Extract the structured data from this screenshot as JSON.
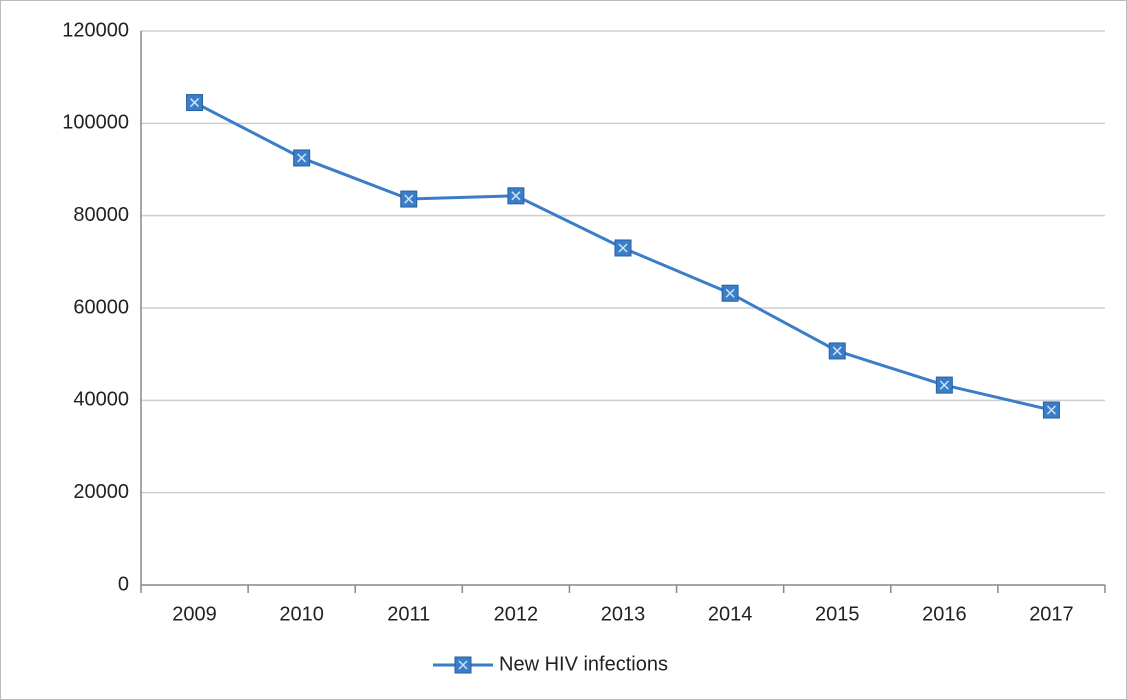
{
  "chart_data": {
    "type": "line",
    "categories": [
      "2009",
      "2010",
      "2011",
      "2012",
      "2013",
      "2014",
      "2015",
      "2016",
      "2017"
    ],
    "series": [
      {
        "name": "New HIV infections",
        "color": "#3a7dc8",
        "values": [
          104500,
          92500,
          83600,
          84300,
          73000,
          63200,
          50700,
          43300,
          37900
        ]
      }
    ],
    "ylim": [
      0,
      120000
    ],
    "yticks": [
      0,
      20000,
      40000,
      60000,
      80000,
      100000,
      120000
    ],
    "grid": true,
    "legend": "bottom"
  }
}
